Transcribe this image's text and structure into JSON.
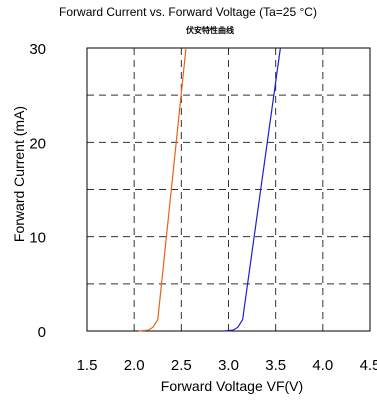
{
  "chart_data": {
    "type": "line",
    "title": "Forward Current vs. Forward Voltage (Ta=25 °C)",
    "subtitle": "伏安特性曲线",
    "xlabel": "Forward Voltage  VF(V)",
    "ylabel": "Forward Current (mA)",
    "xlim": [
      1.5,
      4.5
    ],
    "ylim": [
      0,
      30
    ],
    "x_ticks": [
      "1.5",
      "2.0",
      "2.5",
      "3.0",
      "3.5",
      "4.0",
      "4.5"
    ],
    "x_tick_values": [
      1.5,
      2.0,
      2.5,
      3.0,
      3.5,
      4.0,
      4.5
    ],
    "y_ticks": [
      "0",
      "10",
      "20",
      "30"
    ],
    "y_tick_values": [
      0,
      10,
      20,
      30
    ],
    "grid": true,
    "grid_style": "dashed",
    "x_grid": [
      2.0,
      2.5,
      3.0,
      3.5,
      4.0
    ],
    "y_grid": [
      5,
      10,
      15,
      20,
      25
    ],
    "series": [
      {
        "color": "#e8611a",
        "points": [
          [
            2.05,
            0
          ],
          [
            2.15,
            0.1
          ],
          [
            2.2,
            0.4
          ],
          [
            2.25,
            1.2
          ],
          [
            2.55,
            30
          ]
        ]
      },
      {
        "color": "#1f1fc8",
        "points": [
          [
            2.95,
            0
          ],
          [
            3.05,
            0.1
          ],
          [
            3.1,
            0.4
          ],
          [
            3.15,
            1.2
          ],
          [
            3.55,
            30
          ]
        ]
      }
    ]
  }
}
